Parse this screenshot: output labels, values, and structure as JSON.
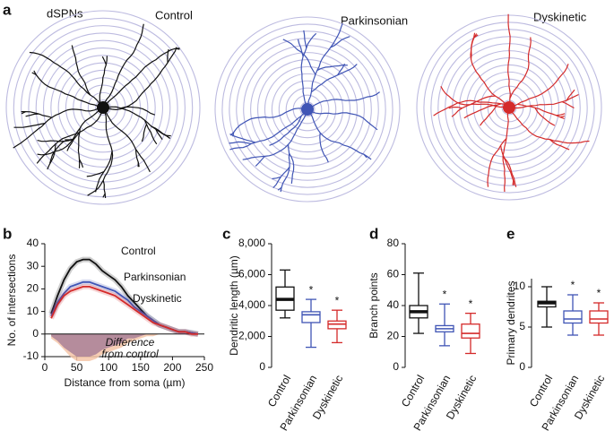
{
  "panel_a": {
    "panel": "a",
    "cell_type": "dSPNs",
    "conditions": [
      {
        "name": "Control",
        "color": "#111111"
      },
      {
        "name": "Parkinsonian",
        "color": "#4055b5"
      },
      {
        "name": "Dyskinetic",
        "color": "#d42a2a"
      }
    ]
  },
  "chart_data": [
    {
      "type": "line",
      "panel": "b",
      "xlabel": "Distance from soma (µm)",
      "ylabel": "No. of intersections",
      "x": [
        10,
        20,
        30,
        40,
        50,
        60,
        70,
        80,
        90,
        100,
        110,
        120,
        130,
        140,
        150,
        160,
        170,
        180,
        190,
        200,
        210,
        220,
        230,
        240
      ],
      "xlim": [
        0,
        250
      ],
      "xticks": [
        0,
        50,
        100,
        150,
        200,
        250
      ],
      "ylim": [
        -10,
        40
      ],
      "yticks": [
        -10,
        0,
        10,
        20,
        30,
        40
      ],
      "series": [
        {
          "name": "Control",
          "color": "#111111",
          "values": [
            9,
            17,
            24,
            29,
            32,
            33,
            33,
            31,
            28,
            26,
            24,
            21,
            17,
            14,
            11,
            8,
            6,
            4,
            3,
            2,
            1,
            1,
            0.5,
            0
          ]
        },
        {
          "name": "Parkinsonian",
          "color": "#4055b5",
          "values": [
            8,
            14,
            18,
            21,
            22,
            23,
            23,
            22,
            21,
            20,
            19,
            17,
            15,
            12,
            10,
            8,
            6,
            4,
            3,
            2,
            1,
            1,
            0.5,
            0
          ]
        },
        {
          "name": "Dyskinetic",
          "color": "#d42a2a",
          "values": [
            7,
            13,
            17,
            19,
            20,
            21,
            21,
            20,
            19,
            18,
            17,
            15,
            13,
            11,
            9,
            7,
            5,
            4,
            3,
            2,
            1,
            1,
            0,
            0
          ]
        }
      ],
      "difference": {
        "label": [
          "Difference",
          "from control"
        ],
        "areas": [
          {
            "color": "#f5c6a8",
            "values": [
              -2,
              -4,
              -7,
              -10,
              -12,
              -12,
              -12,
              -11,
              -9,
              -8,
              -7,
              -6,
              -4,
              -3,
              -2,
              -1,
              -1,
              0,
              0,
              0,
              0,
              0,
              0,
              0
            ]
          },
          {
            "color": "#a98098",
            "values": [
              -1,
              -3,
              -6,
              -8,
              -10,
              -10,
              -10,
              -9,
              -7,
              -6,
              -5,
              -4,
              -2,
              -2,
              -1,
              0,
              0,
              0,
              0,
              0,
              0,
              0,
              0,
              0
            ]
          }
        ]
      }
    },
    {
      "type": "box",
      "panel": "c",
      "ylabel": "Dendritic length (µm)",
      "categories": [
        "Control",
        "Parkinsonian",
        "Dyskinetic"
      ],
      "colors": [
        "#111111",
        "#4055b5",
        "#d42a2a"
      ],
      "ylim": [
        0,
        8000
      ],
      "yticks": [
        0,
        {
          "value": 2000,
          "label": "2,000"
        },
        {
          "value": 4000,
          "label": "4,000"
        },
        {
          "value": 6000,
          "label": "6,000"
        },
        {
          "value": 8000,
          "label": "8,000"
        }
      ],
      "whislo": [
        3200,
        1300,
        1600
      ],
      "q1": [
        3700,
        2900,
        2500
      ],
      "med": [
        4400,
        3400,
        2800
      ],
      "q3": [
        5200,
        3600,
        3000
      ],
      "whishi": [
        6300,
        4400,
        3700
      ],
      "markers": [
        null,
        "*",
        "*"
      ]
    },
    {
      "type": "box",
      "panel": "d",
      "ylabel": "Branch points",
      "categories": [
        "Control",
        "Parkinsonian",
        "Dyskinetic"
      ],
      "colors": [
        "#111111",
        "#4055b5",
        "#d42a2a"
      ],
      "ylim": [
        0,
        80
      ],
      "yticks": [
        0,
        20,
        40,
        60,
        80
      ],
      "whislo": [
        22,
        14,
        9
      ],
      "q1": [
        32,
        23,
        19
      ],
      "med": [
        36,
        25,
        22
      ],
      "q3": [
        40,
        27,
        28
      ],
      "whishi": [
        61,
        41,
        35
      ],
      "markers": [
        null,
        "*",
        "*"
      ]
    },
    {
      "type": "box",
      "panel": "e",
      "ylabel": "Primary dendrites",
      "categories": [
        "Control",
        "Parkinsonian",
        "Dyskinetic"
      ],
      "colors": [
        "#111111",
        "#4055b5",
        "#d42a2a"
      ],
      "ylim": [
        0,
        11
      ],
      "yticks": [
        0,
        5,
        10
      ],
      "whislo": [
        5,
        4,
        4
      ],
      "q1": [
        7.5,
        5.5,
        5.5
      ],
      "med": [
        8,
        6,
        6
      ],
      "q3": [
        8.2,
        7,
        7
      ],
      "whishi": [
        10,
        9,
        8
      ],
      "markers": [
        null,
        "*",
        "*"
      ]
    }
  ]
}
